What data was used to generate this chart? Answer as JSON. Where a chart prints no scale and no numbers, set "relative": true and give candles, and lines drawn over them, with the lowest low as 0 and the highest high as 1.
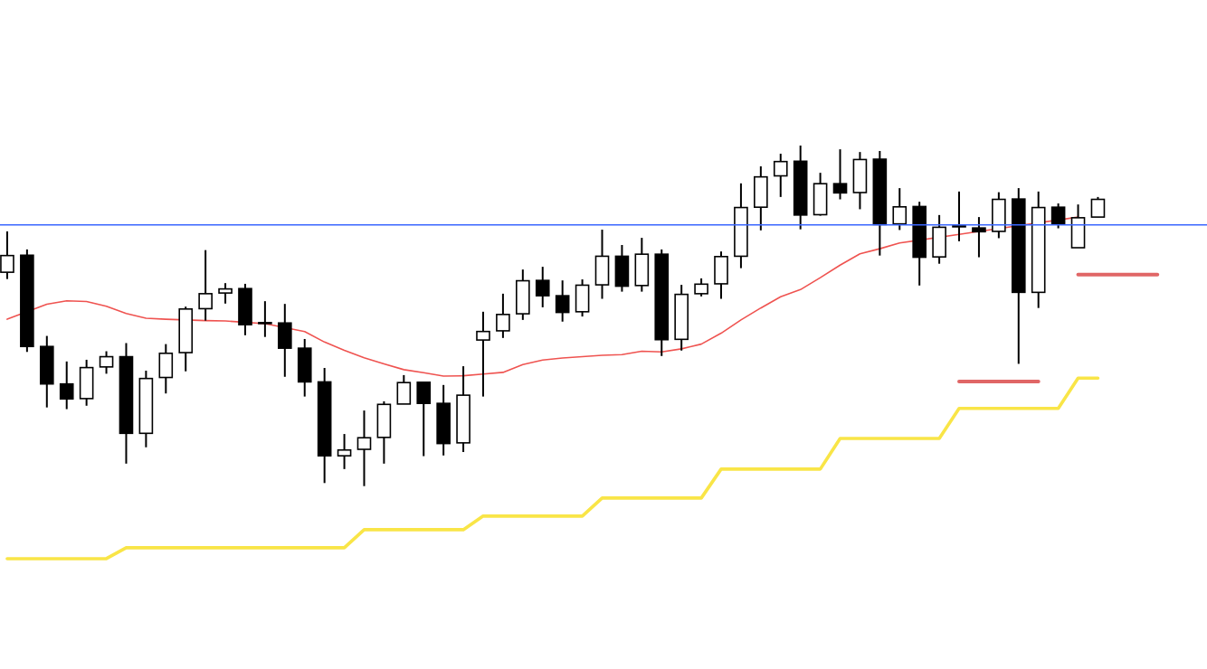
{
  "chart_data": {
    "type": "candlestick",
    "relative": true,
    "color": "#000000",
    "categories": [
      null,
      null,
      null,
      null,
      null,
      null,
      null,
      null,
      null,
      null,
      null,
      null,
      null,
      null,
      null,
      null,
      null,
      null,
      null,
      null,
      null,
      null,
      null,
      null,
      null,
      null,
      null,
      null,
      null,
      null,
      null,
      null,
      null,
      null,
      null,
      null,
      null,
      null,
      null,
      null,
      null,
      null,
      null,
      null,
      null,
      null,
      null,
      null,
      null,
      null,
      null,
      null,
      null,
      null,
      null,
      null,
      null,
      null,
      null,
      null,
      null
    ],
    "ohlc": [
      [
        0.628,
        0.748,
        0.608,
        0.677
      ],
      [
        0.678,
        0.695,
        0.394,
        0.41
      ],
      [
        0.41,
        0.441,
        0.231,
        0.3
      ],
      [
        0.3,
        0.366,
        0.226,
        0.256
      ],
      [
        0.257,
        0.371,
        0.236,
        0.348
      ],
      [
        0.35,
        0.396,
        0.33,
        0.38
      ],
      [
        0.38,
        0.42,
        0.066,
        0.155
      ],
      [
        0.155,
        0.339,
        0.114,
        0.316
      ],
      [
        0.319,
        0.417,
        0.272,
        0.39
      ],
      [
        0.392,
        0.527,
        0.337,
        0.52
      ],
      [
        0.521,
        0.693,
        0.486,
        0.565
      ],
      [
        0.567,
        0.596,
        0.536,
        0.579
      ],
      [
        0.58,
        0.594,
        0.443,
        0.474
      ],
      [
        0.48,
        0.543,
        0.438,
        0.479
      ],
      [
        0.479,
        0.535,
        0.321,
        0.405
      ],
      [
        0.405,
        0.432,
        0.263,
        0.306
      ],
      [
        0.306,
        0.347,
        0.009,
        0.089
      ],
      [
        0.089,
        0.153,
        0.05,
        0.106
      ],
      [
        0.108,
        0.222,
        0,
        0.142
      ],
      [
        0.143,
        0.249,
        0.066,
        0.24
      ],
      [
        0.241,
        0.326,
        0.241,
        0.304
      ],
      [
        0.305,
        0.307,
        0.088,
        0.243
      ],
      [
        0.243,
        0.297,
        0.09,
        0.125
      ],
      [
        0.127,
        0.352,
        0.1,
        0.267
      ],
      [
        0.429,
        0.512,
        0.263,
        0.454
      ],
      [
        0.456,
        0.565,
        0.435,
        0.504
      ],
      [
        0.506,
        0.636,
        0.488,
        0.603
      ],
      [
        0.604,
        0.644,
        0.525,
        0.559
      ],
      [
        0.559,
        0.604,
        0.483,
        0.51
      ],
      [
        0.512,
        0.607,
        0.498,
        0.59
      ],
      [
        0.591,
        0.753,
        0.55,
        0.675
      ],
      [
        0.675,
        0.708,
        0.571,
        0.587
      ],
      [
        0.589,
        0.729,
        0.571,
        0.681
      ],
      [
        0.681,
        0.695,
        0.382,
        0.43
      ],
      [
        0.431,
        0.591,
        0.398,
        0.563
      ],
      [
        0.565,
        0.61,
        0.557,
        0.593
      ],
      [
        0.594,
        0.689,
        0.55,
        0.674
      ],
      [
        0.675,
        0.889,
        0.64,
        0.818
      ],
      [
        0.819,
        0.939,
        0.751,
        0.908
      ],
      [
        0.911,
        0.976,
        0.849,
        0.953
      ],
      [
        0.954,
        1,
        0.754,
        0.796
      ],
      [
        0.797,
        0.92,
        0.794,
        0.888
      ],
      [
        0.888,
        0.989,
        0.842,
        0.861
      ],
      [
        0.862,
        0.981,
        0.813,
        0.959
      ],
      [
        0.96,
        0.984,
        0.677,
        0.768
      ],
      [
        0.77,
        0.875,
        0.752,
        0.82
      ],
      [
        0.821,
        0.835,
        0.589,
        0.672
      ],
      [
        0.673,
        0.796,
        0.653,
        0.76
      ],
      [
        0.764,
        0.865,
        0.719,
        0.762
      ],
      [
        0.758,
        0.79,
        0.672,
        0.747
      ],
      [
        0.748,
        0.863,
        0.728,
        0.842
      ],
      [
        0.843,
        0.875,
        0.359,
        0.569
      ],
      [
        0.569,
        0.865,
        0.523,
        0.818
      ],
      [
        0.819,
        0.83,
        0.757,
        0.77
      ],
      [
        0.7,
        0.827,
        0.7,
        0.788
      ],
      [
        0.79,
        0.849,
        0.79,
        0.842
      ],
      null,
      null,
      null,
      null,
      null
    ],
    "series": [
      {
        "type": "line",
        "color": "#ef5350",
        "values": [
          0.49,
          null,
          0.534,
          0.544,
          0.542,
          0.528,
          0.507,
          0.493,
          0.49,
          null,
          0.486,
          0.485,
          null,
          0.477,
          null,
          0.454,
          0.423,
          0.399,
          0.377,
          0.359,
          0.342,
          0.333,
          0.323,
          0.324,
          0.329,
          0.334,
          0.357,
          0.37,
          0.376,
          0.38,
          0.384,
          0.386,
          0.396,
          0.394,
          0.403,
          0.417,
          0.449,
          0.488,
          0.523,
          0.556,
          0.577,
          0.612,
          0.649,
          0.682,
          0.697,
          0.714,
          null,
          null,
          0.739,
          0.748,
          null,
          null,
          null,
          null,
          0.79,
          null,
          null,
          null,
          null,
          null,
          null
        ]
      },
      {
        "type": "line",
        "color": "#f9e547",
        "values": [
          -0.213,
          -0.213,
          -0.213,
          -0.213,
          -0.213,
          -0.213,
          -0.181,
          -0.181,
          -0.181,
          -0.181,
          -0.181,
          -0.181,
          -0.181,
          -0.181,
          -0.181,
          -0.181,
          -0.181,
          -0.181,
          -0.128,
          -0.128,
          -0.128,
          -0.128,
          -0.128,
          -0.128,
          -0.088,
          -0.088,
          -0.088,
          -0.088,
          -0.088,
          -0.088,
          -0.035,
          -0.035,
          -0.035,
          -0.035,
          -0.035,
          -0.035,
          0.05,
          0.05,
          0.05,
          0.05,
          0.05,
          0.05,
          0.14,
          0.14,
          0.14,
          0.14,
          0.14,
          0.14,
          0.228,
          0.228,
          0.228,
          0.228,
          0.228,
          0.228,
          0.317,
          0.317,
          null,
          null,
          null,
          null,
          null
        ]
      },
      {
        "type": "line",
        "color": "#e06666",
        "values": [
          null,
          null,
          null,
          null,
          null,
          null,
          null,
          null,
          null,
          null,
          null,
          null,
          null,
          null,
          null,
          null,
          null,
          null,
          null,
          null,
          null,
          null,
          null,
          null,
          null,
          null,
          null,
          null,
          null,
          null,
          null,
          null,
          null,
          null,
          null,
          null,
          null,
          null,
          null,
          null,
          null,
          null,
          null,
          null,
          null,
          null,
          null,
          null,
          0.307,
          0.307,
          0.307,
          0.307,
          0.307,
          null,
          null,
          null,
          null,
          null,
          null,
          null,
          null
        ]
      },
      {
        "type": "line",
        "color": "#e06666",
        "values": [
          null,
          null,
          null,
          null,
          null,
          null,
          null,
          null,
          null,
          null,
          null,
          null,
          null,
          null,
          null,
          null,
          null,
          null,
          null,
          null,
          null,
          null,
          null,
          null,
          null,
          null,
          null,
          null,
          null,
          null,
          null,
          null,
          null,
          null,
          null,
          null,
          null,
          null,
          null,
          null,
          null,
          null,
          null,
          null,
          null,
          null,
          null,
          null,
          null,
          null,
          null,
          null,
          null,
          null,
          0.621,
          0.621,
          0.621,
          0.621,
          0.621,
          null,
          null
        ]
      }
    ],
    "ref_lines": [
      {
        "axis": "y",
        "value": 0.767,
        "color": "#3a66ff"
      }
    ]
  }
}
